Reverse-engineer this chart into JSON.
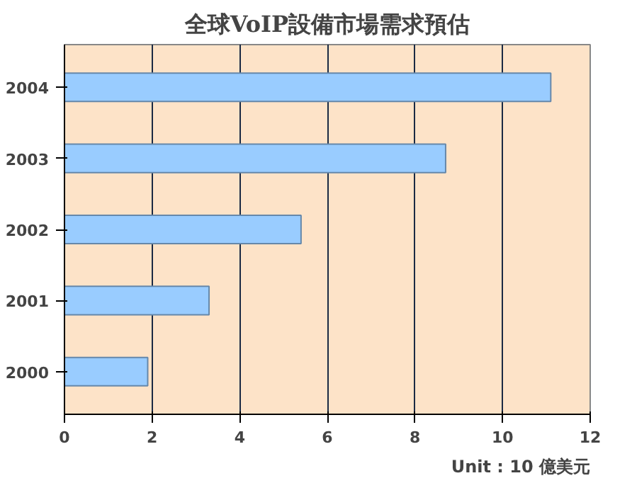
{
  "chart_data": {
    "type": "bar",
    "orientation": "horizontal",
    "title": "全球VoIP設備市場需求預估",
    "categories": [
      "2004",
      "2003",
      "2002",
      "2001",
      "2000"
    ],
    "values": [
      11.1,
      8.7,
      5.4,
      3.3,
      1.9
    ],
    "color": "#99ccff",
    "xlim": [
      0,
      12
    ],
    "xticks": [
      0,
      2,
      4,
      6,
      8,
      10,
      12
    ],
    "grid": "x",
    "annotations": [
      "Unit : 10 億美元"
    ]
  }
}
